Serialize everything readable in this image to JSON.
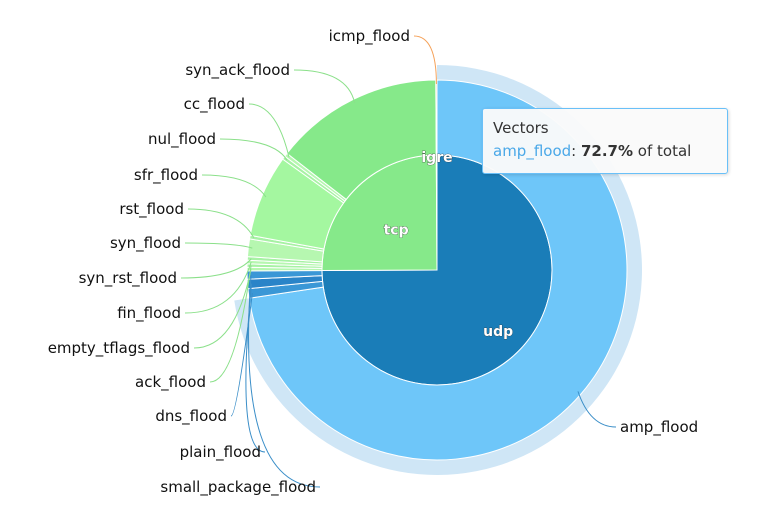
{
  "chart_data": {
    "type": "pie",
    "subtype": "sunburst",
    "unit": "% of total",
    "inner": [
      {
        "name": "udp",
        "value": 75.0,
        "color": "#1a7db8"
      },
      {
        "name": "tcp",
        "value": 25.0,
        "color": "#86e98a"
      },
      {
        "name": "igre",
        "value": 0.1,
        "color": "#f5a25a"
      }
    ],
    "outer": [
      {
        "name": "amp_flood",
        "parent": "udp",
        "value": 72.7,
        "color": "#6ec6f9"
      },
      {
        "name": "dns_flood",
        "parent": "udp",
        "value": 0.8,
        "color": "#3a97d6"
      },
      {
        "name": "plain_flood",
        "parent": "udp",
        "value": 0.8,
        "color": "#2a84c8"
      },
      {
        "name": "small_package_flood",
        "parent": "udp",
        "value": 0.7,
        "color": "#3a97d6"
      },
      {
        "name": "empty_tflags_flood",
        "parent": "tcp",
        "value": 0.3,
        "color": "#b6f7b0"
      },
      {
        "name": "ack_flood",
        "parent": "tcp",
        "value": 0.3,
        "color": "#a7f2a4"
      },
      {
        "name": "fin_flood",
        "parent": "tcp",
        "value": 0.3,
        "color": "#b6f7b0"
      },
      {
        "name": "syn_rst_flood",
        "parent": "tcp",
        "value": 0.3,
        "color": "#a7f2a4"
      },
      {
        "name": "syn_flood",
        "parent": "tcp",
        "value": 1.5,
        "color": "#b6f7b0"
      },
      {
        "name": "rst_flood",
        "parent": "tcp",
        "value": 0.3,
        "color": "#a7f2a4"
      },
      {
        "name": "sfr_flood",
        "parent": "tcp",
        "value": 7.0,
        "color": "#a4f7a0"
      },
      {
        "name": "nul_flood",
        "parent": "tcp",
        "value": 0.3,
        "color": "#a7f2a4"
      },
      {
        "name": "cc_flood",
        "parent": "tcp",
        "value": 0.3,
        "color": "#b6f7b0"
      },
      {
        "name": "syn_ack_flood",
        "parent": "tcp",
        "value": 14.4,
        "color": "#86e98a"
      },
      {
        "name": "icmp_flood",
        "parent": "igre",
        "value": 0.1,
        "color": "#f5a25a"
      }
    ]
  },
  "tooltip": {
    "title": "Vectors",
    "series": "amp_flood",
    "value": "72.7%",
    "suffix": " of total"
  },
  "colors": {
    "highlight_ring": "#cfe6f6",
    "udp_leader": "#3a8ec8",
    "tcp_leader": "#8be08a",
    "igre_leader": "#f5a25a"
  }
}
